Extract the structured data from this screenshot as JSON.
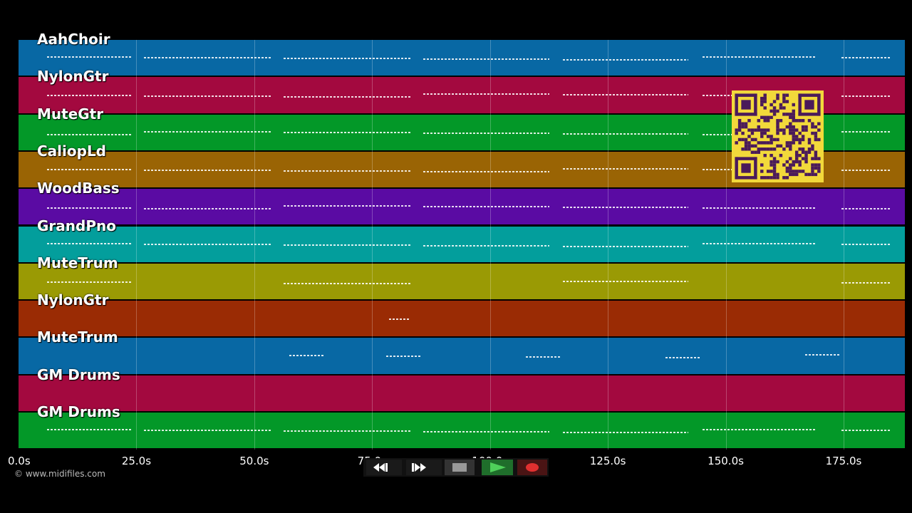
{
  "tracks": [
    {
      "name": "AahChoir",
      "color": "#0868a4"
    },
    {
      "name": "NylonGtr",
      "color": "#a3093f"
    },
    {
      "name": "MuteGtr",
      "color": "#039828"
    },
    {
      "name": "CaliopLd",
      "color": "#9a6404"
    },
    {
      "name": "WoodBass",
      "color": "#5a0ba3"
    },
    {
      "name": "GrandPno",
      "color": "#039e9c"
    },
    {
      "name": "MuteTrum",
      "color": "#9a9a04"
    },
    {
      "name": "NylonGtr",
      "color": "#9a2b04"
    },
    {
      "name": "MuteTrum",
      "color": "#0868a4"
    },
    {
      "name": "GM Drums",
      "color": "#a3093f"
    },
    {
      "name": "GM Drums",
      "color": "#039828"
    }
  ],
  "time_axis": {
    "ticks": [
      "0.0s",
      "25.0s",
      "50.0s",
      "75.0s",
      "100.0s",
      "125.0s",
      "150.0s",
      "175.0s"
    ],
    "max_seconds": 188
  },
  "copyright": "© www.midifiles.com",
  "transport": {
    "rewind_icon": "rewind-icon",
    "fastforward_icon": "fast-forward-icon",
    "stop_icon": "stop-icon",
    "play_icon": "play-icon",
    "record_icon": "record-icon"
  },
  "qr_icon": "qr-code-icon"
}
